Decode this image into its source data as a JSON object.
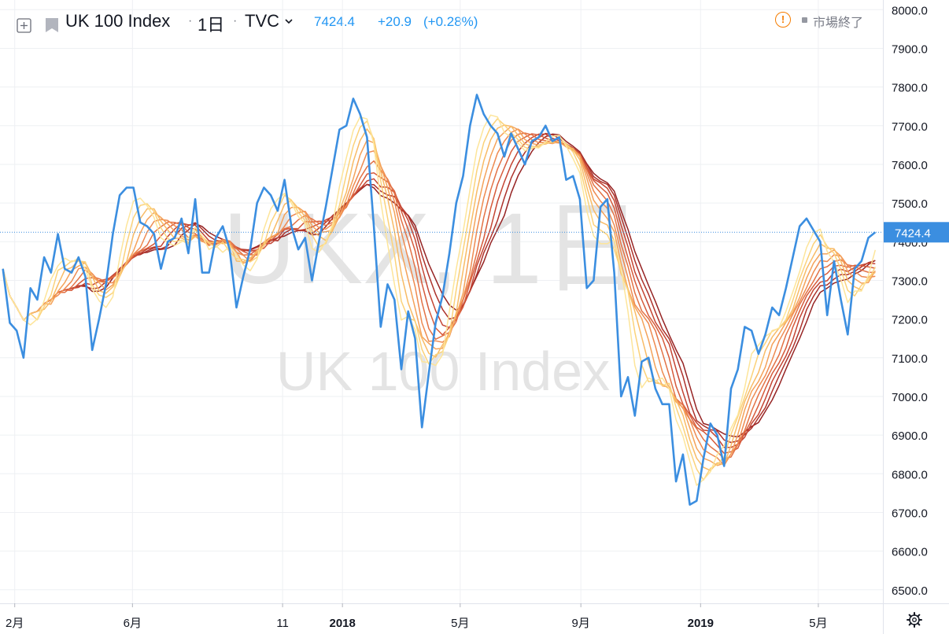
{
  "header": {
    "symbol_title": "UK 100 Index",
    "interval": "1日",
    "exchange": "TVC",
    "last_price": "7424.4",
    "change": "+20.9",
    "change_percent": "(+0.28%)",
    "market_status": "市場終了"
  },
  "watermark": {
    "line1": "UKX, 1日",
    "line2": "UK 100 Index"
  },
  "chart_data": {
    "type": "line",
    "title": "UK 100 Index",
    "xlabel": "",
    "ylabel": "",
    "ylim": [
      6465,
      8025
    ],
    "y_ticks": [
      6500,
      6600,
      6700,
      6800,
      6900,
      7000,
      7100,
      7200,
      7300,
      7400,
      7500,
      7600,
      7700,
      7800,
      7900,
      8000
    ],
    "y_tick_labels": [
      "6500.0",
      "6600.0",
      "6700.0",
      "6800.0",
      "6900.0",
      "7000.0",
      "7100.0",
      "7200.0",
      "7300.0",
      "7400.0",
      "7500.0",
      "7600.0",
      "7700.0",
      "7800.0",
      "7900.0",
      "8000.0"
    ],
    "x_ticks": [
      {
        "label": "2月",
        "bold": false,
        "date": "2017-02-01"
      },
      {
        "label": "6月",
        "bold": false,
        "date": "2017-06-01"
      },
      {
        "label": "11",
        "bold": false,
        "date": "2017-11-01"
      },
      {
        "label": "2018",
        "bold": true,
        "date": "2018-01-01"
      },
      {
        "label": "5月",
        "bold": false,
        "date": "2018-05-01"
      },
      {
        "label": "9月",
        "bold": false,
        "date": "2018-09-01"
      },
      {
        "label": "2019",
        "bold": true,
        "date": "2019-01-01"
      },
      {
        "label": "5月",
        "bold": false,
        "date": "2019-05-01"
      }
    ],
    "last_price_label": "7424.4",
    "last_price": 7424.4,
    "grid": true,
    "series": [
      {
        "color": "#3b8ee0",
        "points": [
          [
            "2017-01-20",
            7330
          ],
          [
            "2017-01-27",
            7190
          ],
          [
            "2017-02-03",
            7170
          ],
          [
            "2017-02-10",
            7100
          ],
          [
            "2017-02-17",
            7280
          ],
          [
            "2017-02-24",
            7250
          ],
          [
            "2017-03-03",
            7360
          ],
          [
            "2017-03-10",
            7320
          ],
          [
            "2017-03-17",
            7420
          ],
          [
            "2017-03-24",
            7330
          ],
          [
            "2017-03-31",
            7320
          ],
          [
            "2017-04-07",
            7360
          ],
          [
            "2017-04-14",
            7310
          ],
          [
            "2017-04-21",
            7120
          ],
          [
            "2017-04-28",
            7200
          ],
          [
            "2017-05-05",
            7290
          ],
          [
            "2017-05-12",
            7420
          ],
          [
            "2017-05-19",
            7520
          ],
          [
            "2017-05-26",
            7540
          ],
          [
            "2017-06-02",
            7540
          ],
          [
            "2017-06-09",
            7450
          ],
          [
            "2017-06-16",
            7440
          ],
          [
            "2017-06-23",
            7420
          ],
          [
            "2017-06-30",
            7330
          ],
          [
            "2017-07-07",
            7400
          ],
          [
            "2017-07-14",
            7410
          ],
          [
            "2017-07-21",
            7460
          ],
          [
            "2017-07-28",
            7370
          ],
          [
            "2017-08-04",
            7510
          ],
          [
            "2017-08-11",
            7320
          ],
          [
            "2017-08-18",
            7320
          ],
          [
            "2017-08-25",
            7410
          ],
          [
            "2017-09-01",
            7440
          ],
          [
            "2017-09-08",
            7380
          ],
          [
            "2017-09-15",
            7230
          ],
          [
            "2017-09-22",
            7310
          ],
          [
            "2017-09-29",
            7380
          ],
          [
            "2017-10-06",
            7500
          ],
          [
            "2017-10-13",
            7540
          ],
          [
            "2017-10-20",
            7520
          ],
          [
            "2017-10-27",
            7480
          ],
          [
            "2017-11-03",
            7560
          ],
          [
            "2017-11-10",
            7440
          ],
          [
            "2017-11-17",
            7380
          ],
          [
            "2017-11-24",
            7410
          ],
          [
            "2017-12-01",
            7300
          ],
          [
            "2017-12-08",
            7400
          ],
          [
            "2017-12-15",
            7490
          ],
          [
            "2017-12-22",
            7590
          ],
          [
            "2017-12-29",
            7690
          ],
          [
            "2018-01-05",
            7700
          ],
          [
            "2018-01-12",
            7770
          ],
          [
            "2018-01-19",
            7730
          ],
          [
            "2018-01-26",
            7670
          ],
          [
            "2018-02-02",
            7440
          ],
          [
            "2018-02-09",
            7180
          ],
          [
            "2018-02-16",
            7290
          ],
          [
            "2018-02-23",
            7250
          ],
          [
            "2018-03-02",
            7070
          ],
          [
            "2018-03-09",
            7220
          ],
          [
            "2018-03-16",
            7150
          ],
          [
            "2018-03-23",
            6920
          ],
          [
            "2018-03-30",
            7060
          ],
          [
            "2018-04-06",
            7190
          ],
          [
            "2018-04-13",
            7260
          ],
          [
            "2018-04-20",
            7370
          ],
          [
            "2018-04-27",
            7500
          ],
          [
            "2018-05-04",
            7570
          ],
          [
            "2018-05-11",
            7700
          ],
          [
            "2018-05-18",
            7780
          ],
          [
            "2018-05-25",
            7730
          ],
          [
            "2018-06-01",
            7700
          ],
          [
            "2018-06-08",
            7680
          ],
          [
            "2018-06-15",
            7620
          ],
          [
            "2018-06-22",
            7680
          ],
          [
            "2018-06-29",
            7640
          ],
          [
            "2018-07-06",
            7600
          ],
          [
            "2018-07-13",
            7660
          ],
          [
            "2018-07-20",
            7670
          ],
          [
            "2018-07-27",
            7700
          ],
          [
            "2018-08-03",
            7660
          ],
          [
            "2018-08-10",
            7670
          ],
          [
            "2018-08-17",
            7560
          ],
          [
            "2018-08-24",
            7570
          ],
          [
            "2018-08-31",
            7510
          ],
          [
            "2018-09-07",
            7280
          ],
          [
            "2018-09-14",
            7300
          ],
          [
            "2018-09-21",
            7490
          ],
          [
            "2018-09-28",
            7510
          ],
          [
            "2018-10-05",
            7320
          ],
          [
            "2018-10-12",
            7000
          ],
          [
            "2018-10-19",
            7050
          ],
          [
            "2018-10-26",
            6950
          ],
          [
            "2018-11-02",
            7090
          ],
          [
            "2018-11-09",
            7100
          ],
          [
            "2018-11-16",
            7020
          ],
          [
            "2018-11-23",
            6980
          ],
          [
            "2018-11-30",
            6980
          ],
          [
            "2018-12-07",
            6780
          ],
          [
            "2018-12-14",
            6850
          ],
          [
            "2018-12-21",
            6720
          ],
          [
            "2018-12-28",
            6730
          ],
          [
            "2019-01-04",
            6840
          ],
          [
            "2019-01-11",
            6930
          ],
          [
            "2019-01-18",
            6900
          ],
          [
            "2019-01-25",
            6820
          ],
          [
            "2019-02-01",
            7020
          ],
          [
            "2019-02-08",
            7070
          ],
          [
            "2019-02-15",
            7180
          ],
          [
            "2019-02-22",
            7170
          ],
          [
            "2019-03-01",
            7110
          ],
          [
            "2019-03-08",
            7160
          ],
          [
            "2019-03-15",
            7230
          ],
          [
            "2019-03-22",
            7210
          ],
          [
            "2019-03-29",
            7280
          ],
          [
            "2019-04-05",
            7360
          ],
          [
            "2019-04-12",
            7440
          ],
          [
            "2019-04-19",
            7460
          ],
          [
            "2019-04-26",
            7430
          ],
          [
            "2019-05-03",
            7400
          ],
          [
            "2019-05-10",
            7210
          ],
          [
            "2019-05-17",
            7350
          ],
          [
            "2019-05-24",
            7250
          ],
          [
            "2019-05-31",
            7160
          ],
          [
            "2019-06-07",
            7330
          ],
          [
            "2019-06-14",
            7350
          ],
          [
            "2019-06-21",
            7410
          ],
          [
            "2019-06-28",
            7424.4
          ]
        ]
      },
      {
        "color": "#fde59a",
        "ma_weeks": 4
      },
      {
        "color": "#fbd27a",
        "ma_weeks": 5
      },
      {
        "color": "#f8bb66",
        "ma_weeks": 6
      },
      {
        "color": "#f4a25a",
        "ma_weeks": 7
      },
      {
        "color": "#ee8a50",
        "ma_weeks": 8
      },
      {
        "color": "#e37245",
        "ma_weeks": 9
      },
      {
        "color": "#d65b3b",
        "ma_weeks": 10
      },
      {
        "color": "#c44533",
        "ma_weeks": 11
      },
      {
        "color": "#ad322b",
        "ma_weeks": 12
      },
      {
        "color": "#962424",
        "ma_weeks": 13
      }
    ]
  },
  "colors": {
    "price_line": "#3b8ee0",
    "last_price_tag": "#3b8ee0",
    "grid": "#eef0f3",
    "axis_text": "#131722",
    "watermark": "#e4e4e4",
    "alert_icon": "#f57c00"
  },
  "icons": {
    "add": "plus-square-icon",
    "symbol": "flag-icon",
    "dropdown": "chevron-down-icon",
    "alert": "exclamation-circle-icon",
    "settings": "gear-icon"
  }
}
